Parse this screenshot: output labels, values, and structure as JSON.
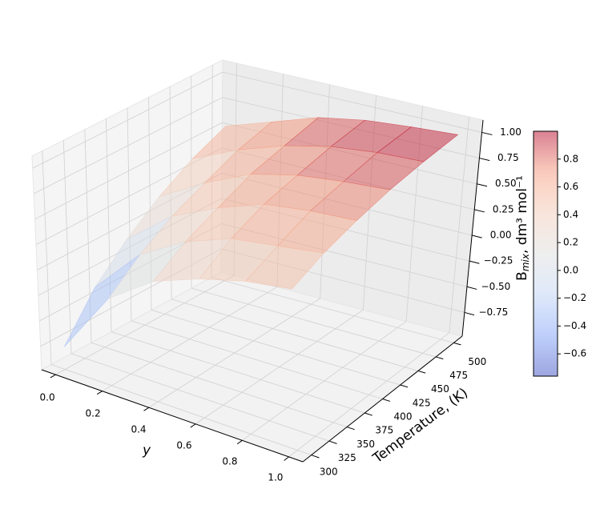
{
  "chart_data": {
    "type": "surface",
    "x": [
      0,
      0.2,
      0.4,
      0.6,
      0.8,
      1
    ],
    "y": [
      300,
      340,
      380,
      420,
      460,
      500
    ],
    "z": [
      [
        -0.76,
        -0.35,
        -0.05,
        0.2,
        0.4,
        0.55
      ],
      [
        -0.15,
        0.1,
        0.3,
        0.45,
        0.6,
        0.7
      ],
      [
        0.15,
        0.35,
        0.5,
        0.65,
        0.75,
        0.85
      ],
      [
        0.3,
        0.5,
        0.65,
        0.75,
        0.85,
        0.93
      ],
      [
        0.4,
        0.55,
        0.7,
        0.8,
        0.9,
        0.97
      ],
      [
        0.45,
        0.6,
        0.72,
        0.83,
        0.92,
        1.0
      ]
    ],
    "xlabel": "y",
    "ylabel": "Temperature, (K)",
    "zlabel": {
      "base": "B",
      "sub": "mix",
      "rest": ", dm³ mol⁻¹"
    },
    "xlim": [
      -0.06,
      1.06
    ],
    "ylim": [
      288,
      512
    ],
    "zlim": [
      -0.98,
      1.12
    ],
    "xticks": [
      {
        "value": 0,
        "label": "0.0"
      },
      0.2,
      0.4,
      0.6,
      0.8,
      {
        "value": 1,
        "label": "1.0"
      }
    ],
    "yticks": [
      300,
      325,
      350,
      375,
      400,
      425,
      450,
      475,
      500
    ],
    "zticks": [
      {
        "value": -0.75,
        "label": "−0.75"
      },
      {
        "value": -0.5,
        "label": "−0.50"
      },
      {
        "value": -0.25,
        "label": "−0.25"
      },
      {
        "value": 0,
        "label": "0.00"
      },
      0.25,
      {
        "value": 0.5,
        "label": "0.50"
      },
      0.75,
      {
        "value": 1,
        "label": "1.00"
      }
    ],
    "colormap": "coolwarm",
    "alpha": 0.5,
    "grid": true,
    "colorbar": {
      "clim": [
        -0.76,
        1.0
      ],
      "ticks": [
        {
          "value": -0.6,
          "label": "−0.6"
        },
        {
          "value": -0.4,
          "label": "−0.4"
        },
        {
          "value": -0.2,
          "label": "−0.2"
        },
        {
          "value": 0,
          "label": "0.0"
        },
        0.2,
        0.4,
        0.6,
        0.8
      ]
    }
  }
}
